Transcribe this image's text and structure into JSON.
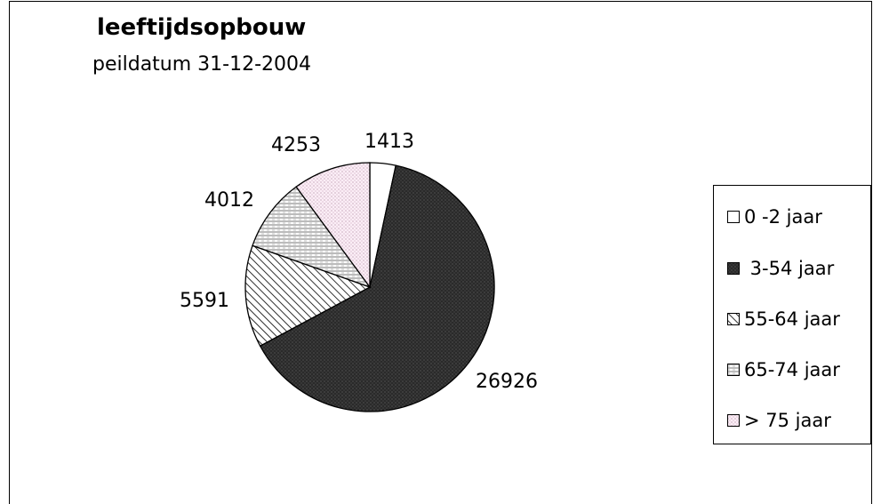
{
  "chart_data": {
    "type": "pie",
    "title": "leeftijdsopbouw",
    "subtitle": "peildatum 31-12-2004",
    "categories": [
      "0 -2 jaar",
      " 3-54 jaar",
      "55-64 jaar",
      "65-74 jaar",
      "> 75 jaar"
    ],
    "values": [
      1413,
      26926,
      5591,
      4012,
      4253
    ],
    "data_labels": [
      "1413",
      "26926",
      "5591",
      "4012",
      "4253"
    ],
    "legend_placement": "right",
    "fills": [
      "white",
      "dark-dotted",
      "diagonal-hatch",
      "light-horizontal-hatch",
      "light-pink-dotted"
    ]
  }
}
